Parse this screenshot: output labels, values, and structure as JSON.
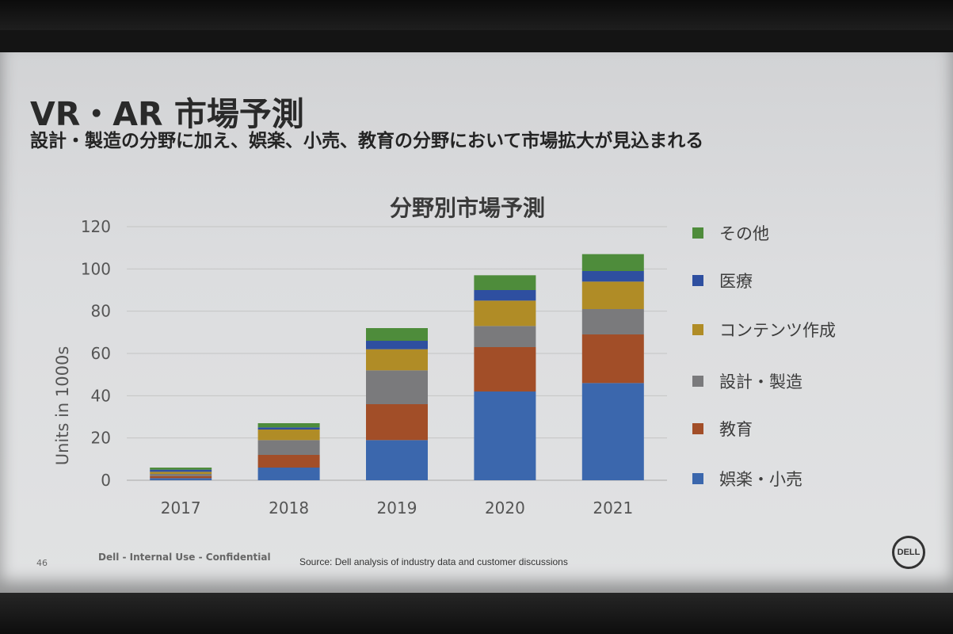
{
  "slide": {
    "title": "VR・AR 市場予測",
    "subtitle": "設計・製造の分野に加え、娯楽、小売、教育の分野において市場拡大が見込まれる",
    "page_number": "46",
    "confidential": "Dell - Internal Use - Confidential",
    "source": "Source: Dell analysis of industry data and customer discussions",
    "logo_text": "DELL"
  },
  "chart_data": {
    "type": "bar",
    "stacked": true,
    "title": "分野別市場予測",
    "xlabel": "",
    "ylabel": "Units in 1000s",
    "ylim": [
      0,
      120
    ],
    "yticks": [
      0,
      20,
      40,
      60,
      80,
      100,
      120
    ],
    "grid": true,
    "legend_position": "right",
    "categories": [
      "2017",
      "2018",
      "2019",
      "2020",
      "2021"
    ],
    "series": [
      {
        "name": "娯楽・小売",
        "color": "#3b67ad",
        "values": [
          1,
          6,
          19,
          42,
          46
        ]
      },
      {
        "name": "教育",
        "color": "#a24e28",
        "values": [
          1,
          6,
          17,
          21,
          23
        ]
      },
      {
        "name": "設計・製造",
        "color": "#7a7a7c",
        "values": [
          1,
          7,
          16,
          10,
          12
        ]
      },
      {
        "name": "コンテンツ作成",
        "color": "#b08c26",
        "values": [
          1,
          5,
          10,
          12,
          13
        ]
      },
      {
        "name": "医療",
        "color": "#2e4fa0",
        "values": [
          1,
          1,
          4,
          5,
          5
        ]
      },
      {
        "name": "その他",
        "color": "#4e8c3b",
        "values": [
          1,
          2,
          6,
          7,
          8
        ]
      }
    ]
  }
}
